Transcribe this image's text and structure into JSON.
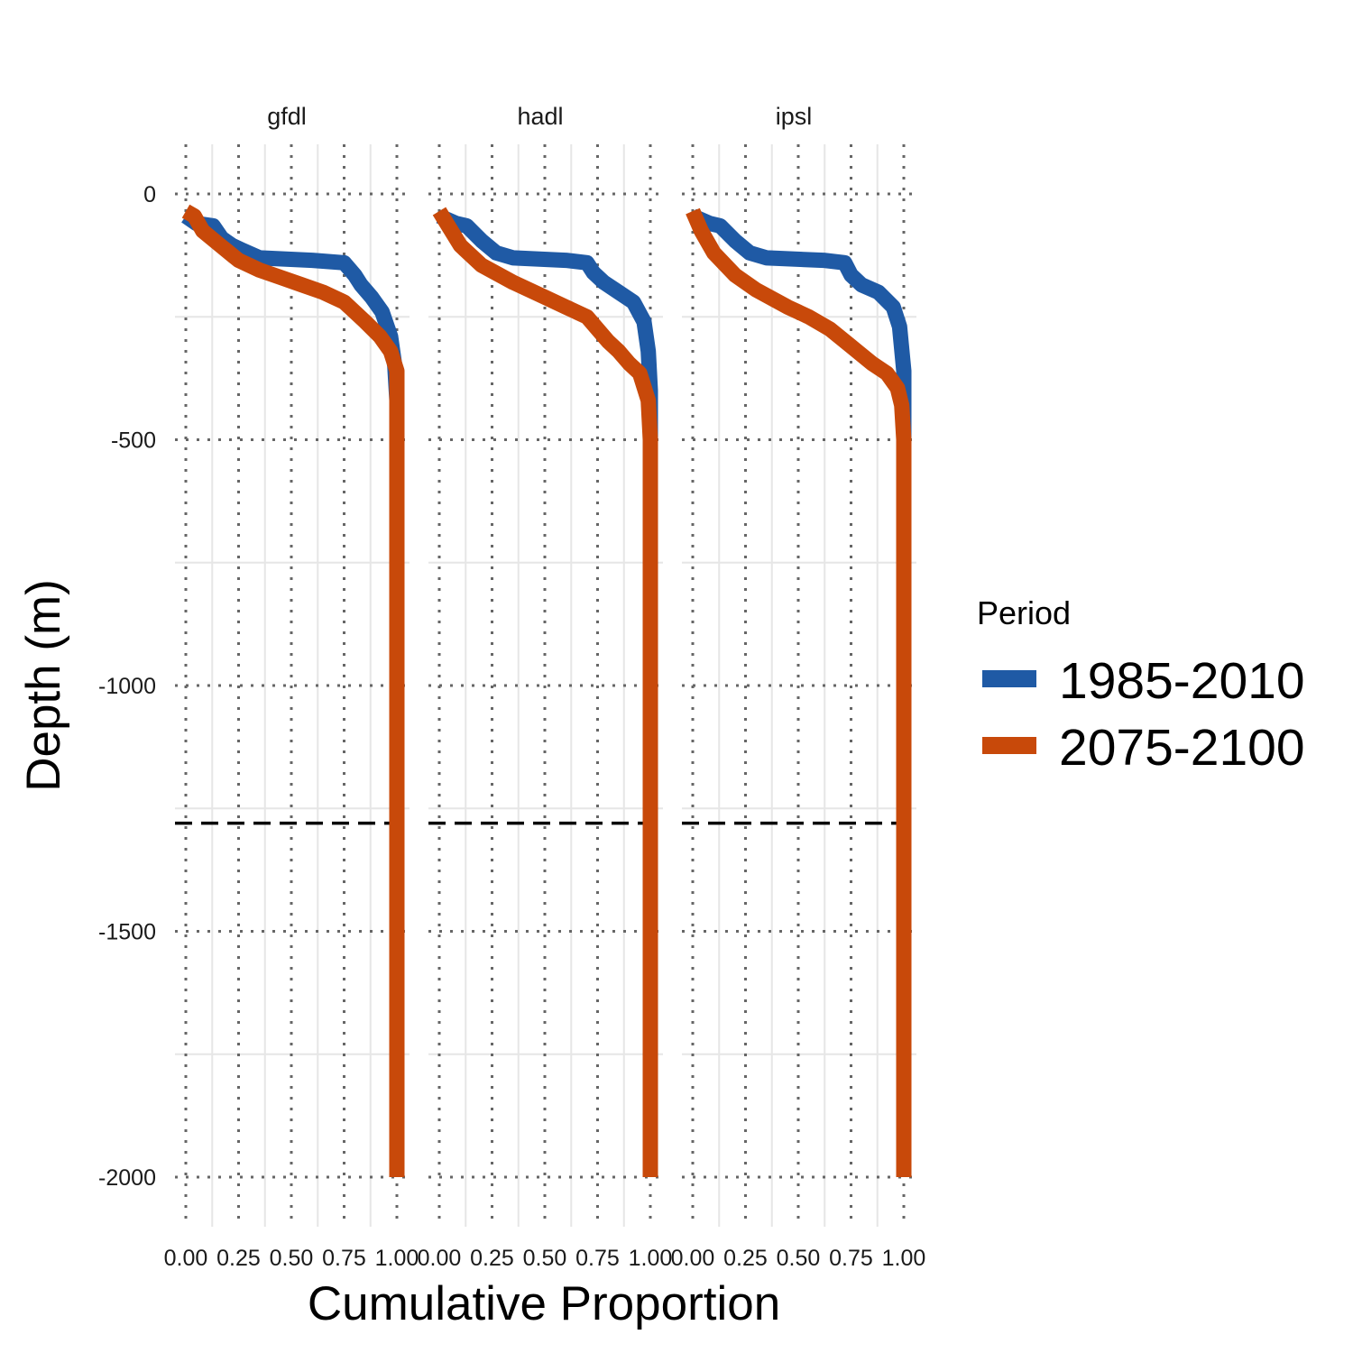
{
  "chart_data": {
    "type": "line",
    "xlabel": "Cumulative Proportion",
    "ylabel": "Depth (m)",
    "xlim": [
      0,
      1
    ],
    "ylim": [
      -2100,
      100
    ],
    "x_ticks": [
      0,
      0.25,
      0.5,
      0.75,
      1
    ],
    "x_tick_labels": [
      "0.00",
      "0.25",
      "0.50",
      "0.75",
      "1.00"
    ],
    "y_ticks": [
      0,
      -500,
      -1000,
      -1500,
      -2000
    ],
    "y_tick_labels": [
      "0",
      "-500",
      "-1000",
      "-1500",
      "-2000"
    ],
    "reference_line": {
      "depth": -1280,
      "style": "dashed",
      "color": "#000000"
    },
    "grid": "dotted at major ticks, light solid at minor",
    "legend": {
      "title": "Period",
      "position": "right"
    },
    "colors": {
      "1985-2010": "#1f5aa5",
      "2075-2100": "#c8490a"
    },
    "panels": [
      {
        "label": "gfdl",
        "series": [
          {
            "name": "1985-2010",
            "points": [
              [
                0,
                -45
              ],
              [
                0.05,
                -60
              ],
              [
                0.13,
                -65
              ],
              [
                0.17,
                -90
              ],
              [
                0.22,
                -105
              ],
              [
                0.27,
                -115
              ],
              [
                0.35,
                -130
              ],
              [
                0.6,
                -135
              ],
              [
                0.75,
                -140
              ],
              [
                0.8,
                -165
              ],
              [
                0.83,
                -185
              ],
              [
                0.88,
                -210
              ],
              [
                0.93,
                -240
              ],
              [
                0.97,
                -290
              ],
              [
                0.99,
                -350
              ],
              [
                1,
                -420
              ],
              [
                1,
                -500
              ],
              [
                1,
                -2000
              ]
            ]
          },
          {
            "name": "2075-2100",
            "points": [
              [
                0,
                -35
              ],
              [
                0.04,
                -45
              ],
              [
                0.08,
                -75
              ],
              [
                0.15,
                -100
              ],
              [
                0.25,
                -135
              ],
              [
                0.35,
                -155
              ],
              [
                0.45,
                -170
              ],
              [
                0.55,
                -185
              ],
              [
                0.65,
                -200
              ],
              [
                0.75,
                -220
              ],
              [
                0.85,
                -260
              ],
              [
                0.92,
                -290
              ],
              [
                0.97,
                -320
              ],
              [
                1,
                -360
              ],
              [
                1,
                -2000
              ]
            ]
          }
        ]
      },
      {
        "label": "hadl",
        "series": [
          {
            "name": "1985-2010",
            "points": [
              [
                0,
                -45
              ],
              [
                0.08,
                -60
              ],
              [
                0.13,
                -65
              ],
              [
                0.2,
                -95
              ],
              [
                0.27,
                -120
              ],
              [
                0.35,
                -130
              ],
              [
                0.6,
                -135
              ],
              [
                0.7,
                -140
              ],
              [
                0.73,
                -160
              ],
              [
                0.78,
                -180
              ],
              [
                0.85,
                -200
              ],
              [
                0.92,
                -220
              ],
              [
                0.97,
                -260
              ],
              [
                0.99,
                -320
              ],
              [
                1,
                -400
              ],
              [
                1,
                -500
              ],
              [
                1,
                -2000
              ]
            ]
          },
          {
            "name": "2075-2100",
            "points": [
              [
                0,
                -35
              ],
              [
                0.05,
                -70
              ],
              [
                0.1,
                -105
              ],
              [
                0.2,
                -145
              ],
              [
                0.35,
                -180
              ],
              [
                0.5,
                -210
              ],
              [
                0.6,
                -230
              ],
              [
                0.7,
                -250
              ],
              [
                0.75,
                -275
              ],
              [
                0.8,
                -300
              ],
              [
                0.85,
                -320
              ],
              [
                0.9,
                -345
              ],
              [
                0.95,
                -365
              ],
              [
                0.99,
                -420
              ],
              [
                1,
                -500
              ],
              [
                1,
                -2000
              ]
            ]
          }
        ]
      },
      {
        "label": "ipsl",
        "series": [
          {
            "name": "1985-2010",
            "points": [
              [
                0,
                -45
              ],
              [
                0.08,
                -60
              ],
              [
                0.13,
                -65
              ],
              [
                0.2,
                -95
              ],
              [
                0.27,
                -120
              ],
              [
                0.35,
                -130
              ],
              [
                0.62,
                -135
              ],
              [
                0.72,
                -140
              ],
              [
                0.75,
                -165
              ],
              [
                0.8,
                -185
              ],
              [
                0.88,
                -200
              ],
              [
                0.95,
                -230
              ],
              [
                0.98,
                -270
              ],
              [
                1,
                -360
              ],
              [
                1,
                -500
              ],
              [
                1,
                -2000
              ]
            ]
          },
          {
            "name": "2075-2100",
            "points": [
              [
                0,
                -35
              ],
              [
                0.04,
                -75
              ],
              [
                0.1,
                -120
              ],
              [
                0.2,
                -165
              ],
              [
                0.3,
                -195
              ],
              [
                0.45,
                -230
              ],
              [
                0.55,
                -250
              ],
              [
                0.65,
                -275
              ],
              [
                0.75,
                -310
              ],
              [
                0.85,
                -345
              ],
              [
                0.92,
                -365
              ],
              [
                0.97,
                -395
              ],
              [
                0.99,
                -430
              ],
              [
                1,
                -500
              ],
              [
                1,
                -2000
              ]
            ]
          }
        ]
      }
    ]
  }
}
